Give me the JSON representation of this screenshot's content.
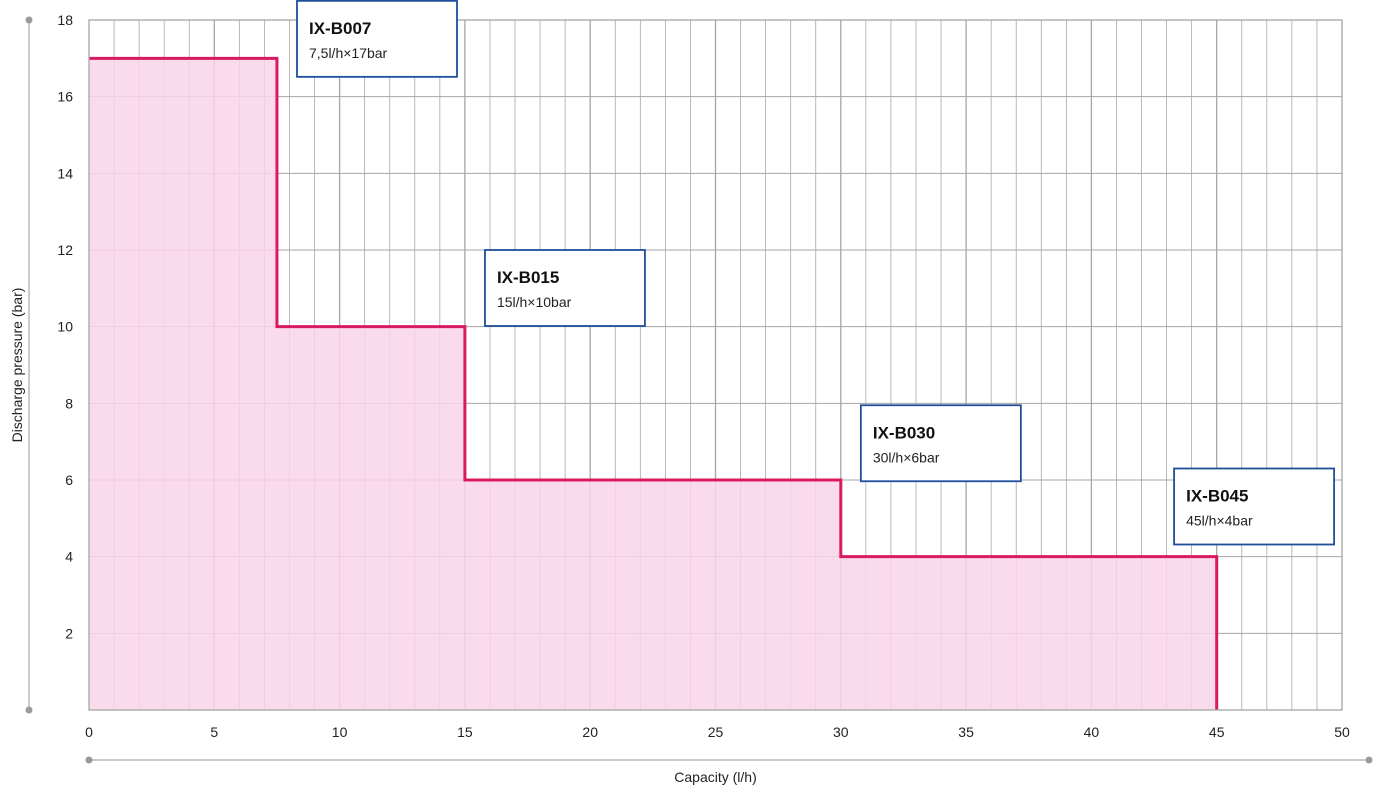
{
  "chart_data": {
    "type": "area",
    "xlabel": "Capacity (l/h)",
    "ylabel": "Discharge pressure (bar)",
    "xlim": [
      0,
      50
    ],
    "ylim": [
      0,
      18
    ],
    "x_ticks": [
      0,
      5,
      10,
      15,
      20,
      25,
      30,
      35,
      40,
      45,
      50
    ],
    "y_ticks": [
      2,
      4,
      6,
      8,
      10,
      12,
      14,
      16,
      18
    ],
    "x_minor_step": 1,
    "y_minor_step": 2,
    "grid": true,
    "series": [
      {
        "values": [
          {
            "x": 0,
            "y": 17
          },
          {
            "x": 7.5,
            "y": 17
          },
          {
            "x": 7.5,
            "y": 10
          },
          {
            "x": 15,
            "y": 10
          },
          {
            "x": 15,
            "y": 6
          },
          {
            "x": 30,
            "y": 6
          },
          {
            "x": 30,
            "y": 4
          },
          {
            "x": 45,
            "y": 4
          },
          {
            "x": 45,
            "y": 0
          }
        ],
        "color": "#d81b60",
        "fill": "#f9d5e7"
      }
    ],
    "annotations": [
      {
        "model": "IX-B007",
        "spec": "7,5l/h×17bar",
        "anchor": {
          "x": 8.3,
          "y": 18.5
        }
      },
      {
        "model": "IX-B015",
        "spec": "15l/h×10bar",
        "anchor": {
          "x": 15.8,
          "y": 12.0
        }
      },
      {
        "model": "IX-B030",
        "spec": "30l/h×6bar",
        "anchor": {
          "x": 30.8,
          "y": 7.95
        }
      },
      {
        "model": "IX-B045",
        "spec": "45l/h×4bar",
        "anchor": {
          "x": 43.3,
          "y": 6.3
        }
      }
    ],
    "colors": {
      "grid": "#a6a6a6",
      "axis": "#9a9a9a",
      "box_border": "#1f4e9a"
    }
  }
}
